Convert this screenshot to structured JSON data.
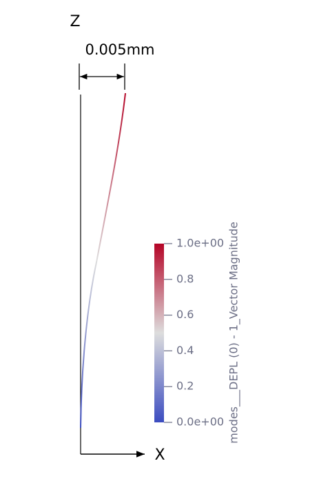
{
  "view": {
    "axis_z": "Z",
    "axis_x": "X",
    "scale_label": "0.005mm",
    "colorbar": {
      "title": "modes___DEPL (0) - 1_Vector Magnitude",
      "range": [
        0,
        1
      ],
      "colors": [
        "#3b4cc0",
        "#dddddd",
        "#b40426"
      ],
      "ticks": [
        {
          "value": 1,
          "label": "1.0e+00"
        },
        0.8,
        0.6,
        0.4,
        0.2,
        {
          "value": 0,
          "label": "0.0e+00"
        }
      ]
    }
  }
}
